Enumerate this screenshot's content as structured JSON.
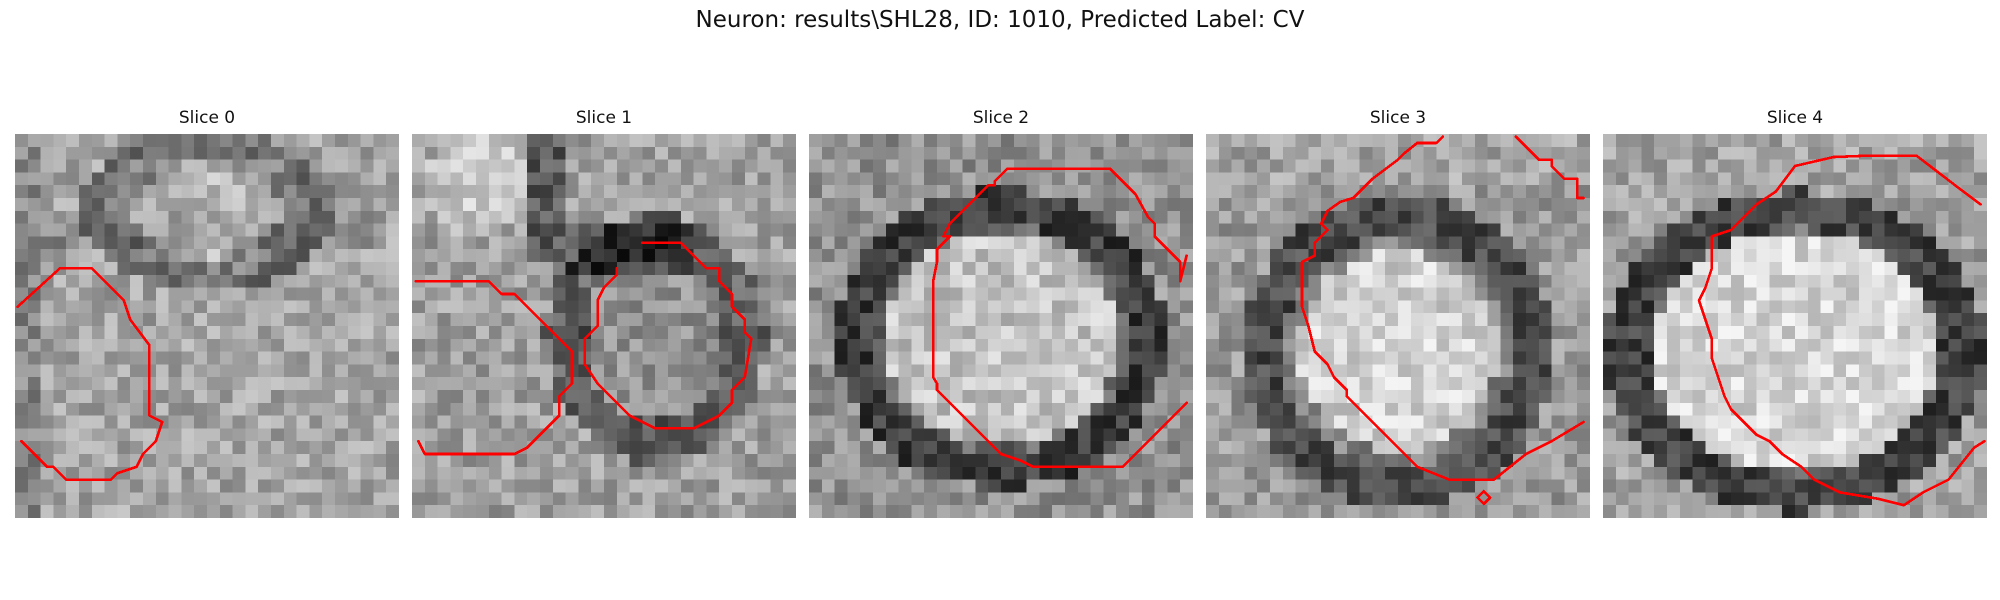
{
  "figure": {
    "title": "Neuron: results\\SHL28, ID: 1010, Predicted Label: CV"
  },
  "panels": [
    {
      "title": "Slice 0"
    },
    {
      "title": "Slice 1"
    },
    {
      "title": "Slice 2"
    },
    {
      "title": "Slice 3"
    },
    {
      "title": "Slice 4"
    }
  ],
  "colors": {
    "contour": "#ff0000",
    "background": "#ffffff"
  }
}
